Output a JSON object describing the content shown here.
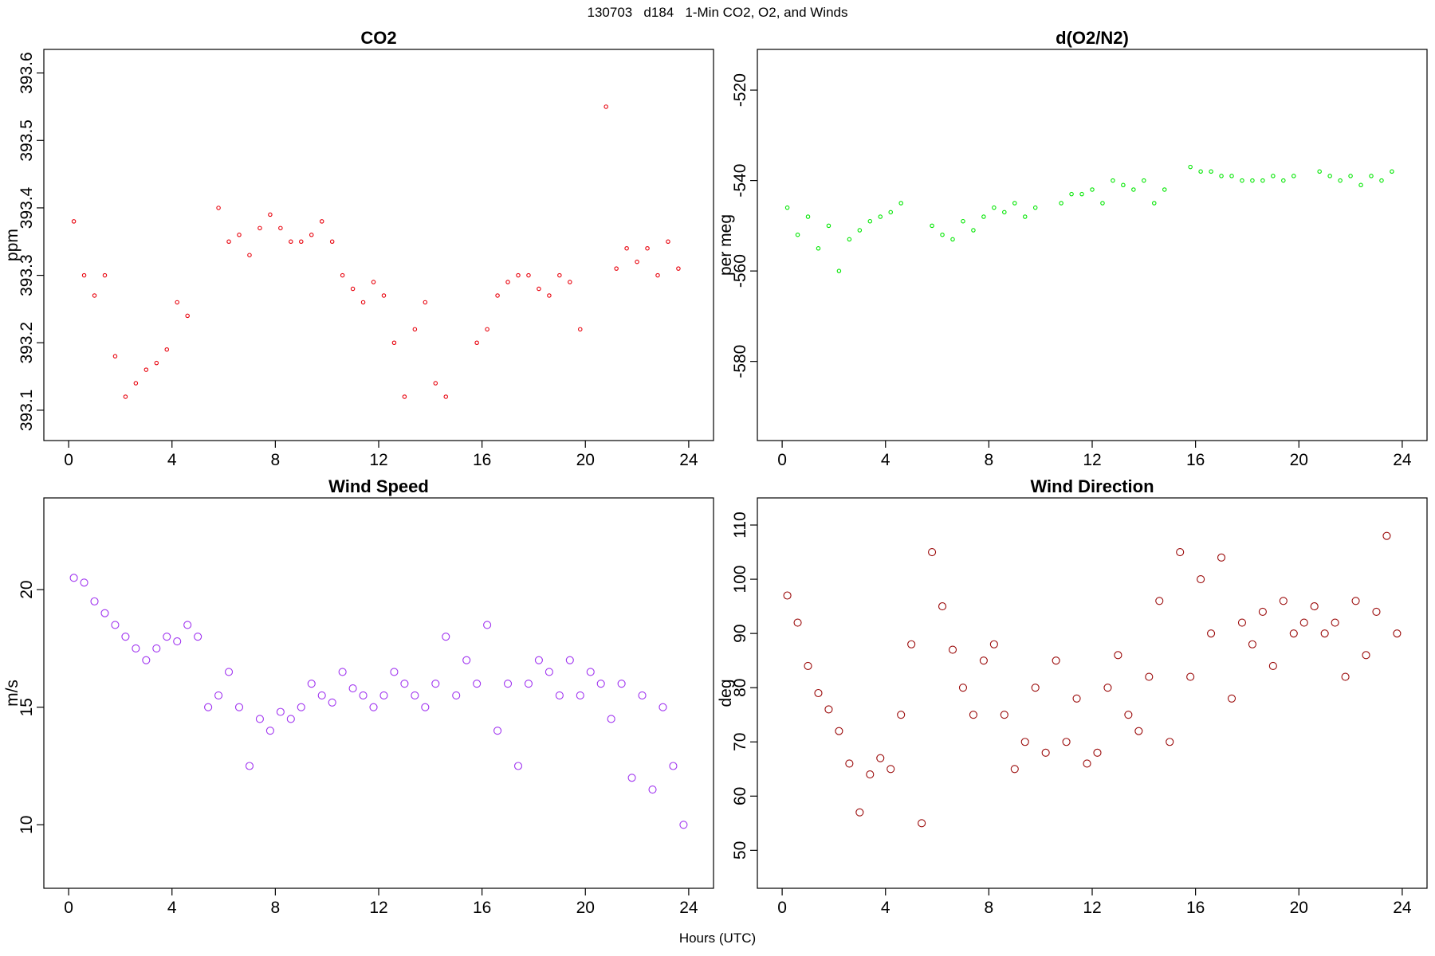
{
  "figure": {
    "title": "130703   d184   1-Min CO2, O2, and Winds",
    "xlabel": "Hours (UTC)"
  },
  "chart_data": [
    {
      "type": "scatter",
      "title": "CO2",
      "ylabel": "ppm",
      "xlim": [
        -0.96,
        24.96
      ],
      "ylim": [
        393.055,
        393.635
      ],
      "xticks": [
        0,
        4,
        8,
        12,
        16,
        20,
        24
      ],
      "yticks": [
        393.1,
        393.2,
        393.3,
        393.4,
        393.5,
        393.6
      ],
      "color": "#e8000b",
      "series": [
        {
          "x": [
            0.2,
            0.6,
            1.0,
            1.4,
            1.8,
            2.2,
            2.6,
            3.0,
            3.4,
            3.8,
            4.2,
            4.6,
            5.8,
            6.2,
            6.6,
            7.0,
            7.4,
            7.8,
            8.2,
            8.6,
            9.0,
            9.4,
            9.8,
            10.2,
            10.6,
            11.0,
            11.4,
            11.8,
            12.2,
            12.6,
            13.0,
            13.4,
            13.8,
            14.2,
            14.6,
            15.8,
            16.2,
            16.6,
            17.0,
            17.4,
            17.8,
            18.2,
            18.6,
            19.0,
            19.4,
            19.8,
            20.8,
            21.2,
            21.6,
            22.0,
            22.4,
            22.8,
            23.2,
            23.6
          ],
          "y": [
            393.38,
            393.3,
            393.27,
            393.3,
            393.18,
            393.12,
            393.14,
            393.16,
            393.17,
            393.19,
            393.26,
            393.24,
            393.4,
            393.35,
            393.36,
            393.33,
            393.37,
            393.39,
            393.37,
            393.35,
            393.35,
            393.36,
            393.38,
            393.35,
            393.3,
            393.28,
            393.26,
            393.29,
            393.27,
            393.2,
            393.12,
            393.22,
            393.26,
            393.14,
            393.12,
            393.2,
            393.22,
            393.27,
            393.29,
            393.3,
            393.3,
            393.28,
            393.27,
            393.3,
            393.29,
            393.22,
            393.55,
            393.31,
            393.34,
            393.32,
            393.34,
            393.3,
            393.35,
            393.31
          ]
        }
      ]
    },
    {
      "type": "scatter",
      "title": "d(O2/N2)",
      "ylabel": "per meg",
      "xlim": [
        -0.96,
        24.96
      ],
      "ylim": [
        -597.5,
        -511
      ],
      "xticks": [
        0,
        4,
        8,
        12,
        16,
        20,
        24
      ],
      "yticks": [
        -580,
        -560,
        -540,
        -520
      ],
      "color": "#00e600",
      "series": [
        {
          "x": [
            0.2,
            0.6,
            1.0,
            1.4,
            1.8,
            2.2,
            2.6,
            3.0,
            3.4,
            3.8,
            4.2,
            4.6,
            5.8,
            6.2,
            6.6,
            7.0,
            7.4,
            7.8,
            8.2,
            8.6,
            9.0,
            9.4,
            9.8,
            10.8,
            11.2,
            11.6,
            12.0,
            12.4,
            12.8,
            13.2,
            13.6,
            14.0,
            14.4,
            14.8,
            15.8,
            16.2,
            16.6,
            17.0,
            17.4,
            17.8,
            18.2,
            18.6,
            19.0,
            19.4,
            19.8,
            20.8,
            21.2,
            21.6,
            22.0,
            22.4,
            22.8,
            23.2,
            23.6
          ],
          "y": [
            -546,
            -552,
            -548,
            -555,
            -550,
            -560,
            -553,
            -551,
            -549,
            -548,
            -547,
            -545,
            -550,
            -552,
            -553,
            -549,
            -551,
            -548,
            -546,
            -547,
            -545,
            -548,
            -546,
            -545,
            -543,
            -543,
            -542,
            -545,
            -540,
            -541,
            -542,
            -540,
            -545,
            -542,
            -537,
            -538,
            -538,
            -539,
            -539,
            -540,
            -540,
            -540,
            -539,
            -540,
            -539,
            -538,
            -539,
            -540,
            -539,
            -541,
            -539,
            -540,
            -538
          ]
        }
      ]
    },
    {
      "type": "scatter",
      "title": "Wind Speed",
      "ylabel": "m/s",
      "xlim": [
        -0.96,
        24.96
      ],
      "ylim": [
        7.3,
        23.9
      ],
      "xticks": [
        0,
        4,
        8,
        12,
        16,
        20,
        24
      ],
      "yticks": [
        10,
        15,
        20
      ],
      "color": "#a034f0",
      "series": [
        {
          "x": [
            0.2,
            0.6,
            1.0,
            1.4,
            1.8,
            2.2,
            2.6,
            3.0,
            3.4,
            3.8,
            4.2,
            4.6,
            5.0,
            5.4,
            5.8,
            6.2,
            6.6,
            7.0,
            7.4,
            7.8,
            8.2,
            8.6,
            9.0,
            9.4,
            9.8,
            10.2,
            10.6,
            11.0,
            11.4,
            11.8,
            12.2,
            12.6,
            13.0,
            13.4,
            13.8,
            14.2,
            14.6,
            15.0,
            15.4,
            15.8,
            16.2,
            16.6,
            17.0,
            17.4,
            17.8,
            18.2,
            18.6,
            19.0,
            19.4,
            19.8,
            20.2,
            20.6,
            21.0,
            21.4,
            21.8,
            22.2,
            22.6,
            23.0,
            23.4,
            23.8
          ],
          "y": [
            20.5,
            20.3,
            19.5,
            19.0,
            18.5,
            18.0,
            17.5,
            17.0,
            17.5,
            18.0,
            17.8,
            18.5,
            18.0,
            15.0,
            15.5,
            16.5,
            15.0,
            12.5,
            14.5,
            14.0,
            14.8,
            14.5,
            15.0,
            16.0,
            15.5,
            15.2,
            16.5,
            15.8,
            15.5,
            15.0,
            15.5,
            16.5,
            16.0,
            15.5,
            15.0,
            16.0,
            18.0,
            15.5,
            17.0,
            16.0,
            18.5,
            14.0,
            16.0,
            12.5,
            16.0,
            17.0,
            16.5,
            15.5,
            17.0,
            15.5,
            16.5,
            16.0,
            14.5,
            16.0,
            12.0,
            15.5,
            11.5,
            15.0,
            12.5,
            10.0
          ]
        }
      ]
    },
    {
      "type": "scatter",
      "title": "Wind Direction",
      "ylabel": "deg",
      "xlim": [
        -0.96,
        24.96
      ],
      "ylim": [
        43,
        115
      ],
      "xticks": [
        0,
        4,
        8,
        12,
        16,
        20,
        24
      ],
      "yticks": [
        50,
        60,
        70,
        80,
        90,
        100,
        110
      ],
      "color": "#9b0a0a",
      "series": [
        {
          "x": [
            0.2,
            0.6,
            1.0,
            1.4,
            1.8,
            2.2,
            2.6,
            3.0,
            3.4,
            3.8,
            4.2,
            4.6,
            5.0,
            5.4,
            5.8,
            6.2,
            6.6,
            7.0,
            7.4,
            7.8,
            8.2,
            8.6,
            9.0,
            9.4,
            9.8,
            10.2,
            10.6,
            11.0,
            11.4,
            11.8,
            12.2,
            12.6,
            13.0,
            13.4,
            13.8,
            14.2,
            14.6,
            15.0,
            15.4,
            15.8,
            16.2,
            16.6,
            17.0,
            17.4,
            17.8,
            18.2,
            18.6,
            19.0,
            19.4,
            19.8,
            20.2,
            20.6,
            21.0,
            21.4,
            21.8,
            22.2,
            22.6,
            23.0,
            23.4,
            23.8
          ],
          "y": [
            97,
            92,
            84,
            79,
            76,
            72,
            66,
            57,
            64,
            67,
            65,
            75,
            88,
            55,
            105,
            95,
            87,
            80,
            75,
            85,
            88,
            75,
            65,
            70,
            80,
            68,
            85,
            70,
            78,
            66,
            68,
            80,
            86,
            75,
            72,
            82,
            96,
            70,
            105,
            82,
            100,
            90,
            104,
            78,
            92,
            88,
            94,
            84,
            96,
            90,
            92,
            95,
            90,
            92,
            82,
            96,
            86,
            94,
            108,
            90
          ]
        }
      ]
    }
  ]
}
